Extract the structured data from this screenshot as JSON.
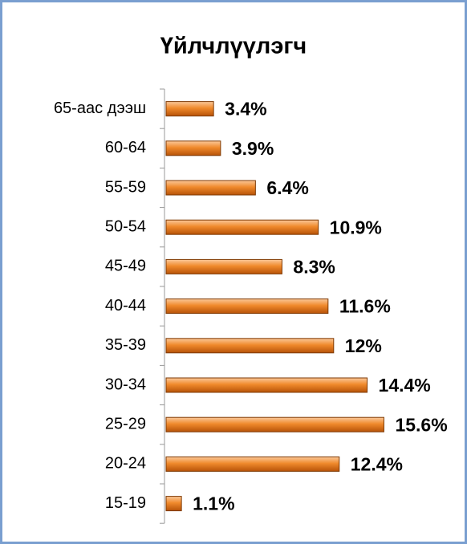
{
  "chart_data": {
    "type": "barh",
    "title": "Үйлчлүүлэгч",
    "categories": [
      "65-аас дээш",
      "60-64",
      "55-59",
      "50-54",
      "45-49",
      "40-44",
      "35-39",
      "30-34",
      "25-29",
      "20-24",
      "15-19"
    ],
    "values": [
      3.4,
      3.9,
      6.4,
      10.9,
      8.3,
      11.6,
      12,
      14.4,
      15.6,
      12.4,
      1.1
    ],
    "value_labels": [
      "3.4%",
      "3.9%",
      "6.4%",
      "10.9%",
      "8.3%",
      "11.6%",
      "12%",
      "14.4%",
      "15.6%",
      "12.4%",
      "1.1%"
    ],
    "color": "#e46c0a"
  }
}
